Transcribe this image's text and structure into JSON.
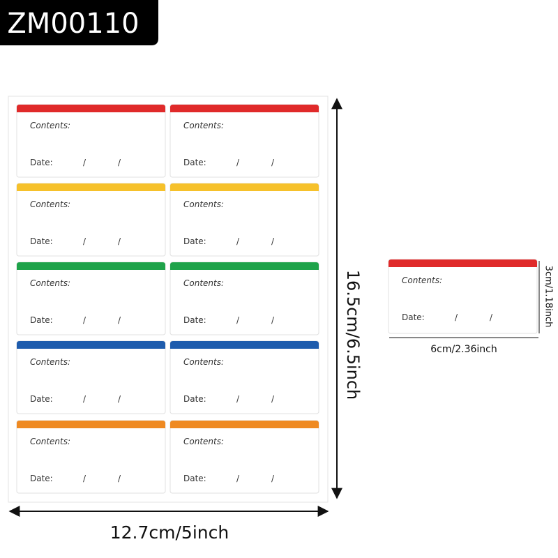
{
  "header": {
    "title": "ZM00110"
  },
  "sheet": {
    "labels": [
      {
        "color": "#e02a2a",
        "contents": "Contents:",
        "date": "Date:",
        "separators": [
          "/",
          "/"
        ]
      },
      {
        "color": "#e02a2a",
        "contents": "Contents:",
        "date": "Date:",
        "separators": [
          "/",
          "/"
        ]
      },
      {
        "color": "#f6c12b",
        "contents": "Contents:",
        "date": "Date:",
        "separators": [
          "/",
          "/"
        ]
      },
      {
        "color": "#f6c12b",
        "contents": "Contents:",
        "date": "Date:",
        "separators": [
          "/",
          "/"
        ]
      },
      {
        "color": "#1fa34a",
        "contents": "Contents:",
        "date": "Date:",
        "separators": [
          "/",
          "/"
        ]
      },
      {
        "color": "#1fa34a",
        "contents": "Contents:",
        "date": "Date:",
        "separators": [
          "/",
          "/"
        ]
      },
      {
        "color": "#1e5cad",
        "contents": "Contents:",
        "date": "Date:",
        "separators": [
          "/",
          "/"
        ]
      },
      {
        "color": "#1e5cad",
        "contents": "Contents:",
        "date": "Date:",
        "separators": [
          "/",
          "/"
        ]
      },
      {
        "color": "#ef8a22",
        "contents": "Contents:",
        "date": "Date:",
        "separators": [
          "/",
          "/"
        ]
      },
      {
        "color": "#ef8a22",
        "contents": "Contents:",
        "date": "Date:",
        "separators": [
          "/",
          "/"
        ]
      }
    ],
    "height_label": "16.5cm/6.5inch",
    "width_label": "12.7cm/5inch"
  },
  "single_label": {
    "label": {
      "color": "#e02a2a",
      "contents": "Contents:",
      "date": "Date:",
      "separators": [
        "/",
        "/"
      ]
    },
    "height_label": "3cm/1.18inch",
    "width_label": "6cm/2.36inch"
  }
}
